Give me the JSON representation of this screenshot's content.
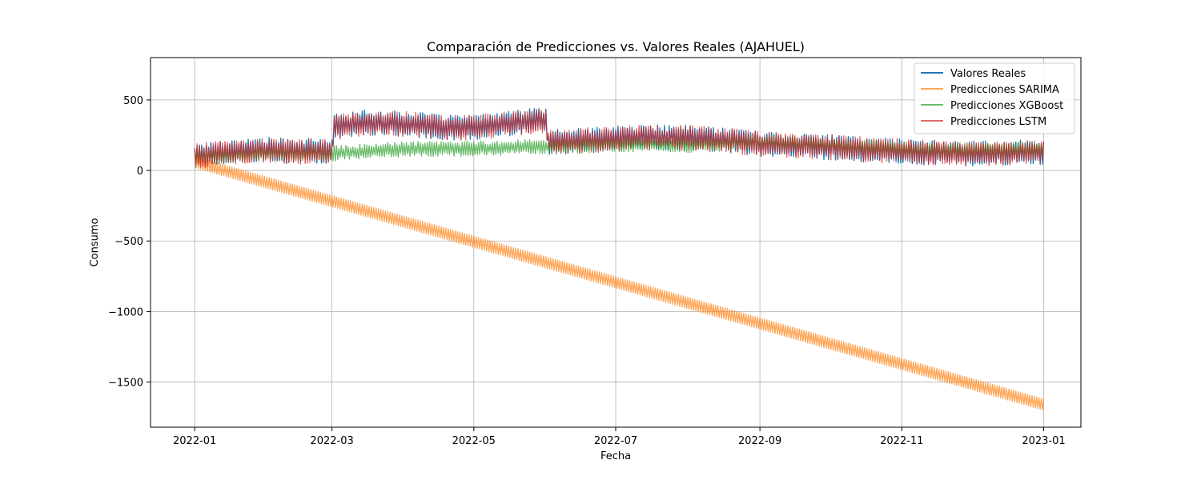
{
  "chart_data": {
    "type": "line",
    "title": "Comparación de Predicciones vs. Valores Reales (AJAHUEL)",
    "xlabel": "Fecha",
    "ylabel": "Consumo",
    "xlim": [
      "2021-12-13",
      "2023-01-17"
    ],
    "ylim": [
      -1820,
      800
    ],
    "x_ticks": [
      "2022-01",
      "2022-03",
      "2022-05",
      "2022-07",
      "2022-09",
      "2022-11",
      "2023-01"
    ],
    "y_ticks": [
      500,
      0,
      -500,
      -1000,
      -1500
    ],
    "y_tick_labels": [
      "500",
      "0",
      "−500",
      "−1000",
      "−1500"
    ],
    "grid": true,
    "legend_position": "top-right",
    "series": [
      {
        "name": "Valores Reales",
        "color": "#1f77b4",
        "points": [
          [
            "2022-01-01",
            100
          ],
          [
            "2022-01-15",
            130
          ],
          [
            "2022-02-01",
            145
          ],
          [
            "2022-02-15",
            135
          ],
          [
            "2022-03-01",
            140
          ],
          [
            "2022-03-02",
            310
          ],
          [
            "2022-03-15",
            340
          ],
          [
            "2022-04-01",
            330
          ],
          [
            "2022-04-15",
            310
          ],
          [
            "2022-05-01",
            300
          ],
          [
            "2022-05-15",
            330
          ],
          [
            "2022-06-01",
            360
          ],
          [
            "2022-06-02",
            200
          ],
          [
            "2022-06-15",
            210
          ],
          [
            "2022-07-01",
            225
          ],
          [
            "2022-07-15",
            235
          ],
          [
            "2022-08-01",
            230
          ],
          [
            "2022-08-15",
            220
          ],
          [
            "2022-09-01",
            190
          ],
          [
            "2022-09-15",
            180
          ],
          [
            "2022-10-01",
            165
          ],
          [
            "2022-10-15",
            150
          ],
          [
            "2022-11-01",
            135
          ],
          [
            "2022-11-15",
            125
          ],
          [
            "2022-12-01",
            120
          ],
          [
            "2022-12-15",
            125
          ],
          [
            "2023-01-01",
            130
          ]
        ]
      },
      {
        "name": "Predicciones SARIMA",
        "color": "#ff7f0e",
        "points": [
          [
            "2022-01-01",
            60
          ],
          [
            "2023-01-01",
            -1660
          ]
        ]
      },
      {
        "name": "Predicciones XGBoost",
        "color": "#2ca02c",
        "points": [
          [
            "2022-01-01",
            100
          ],
          [
            "2022-02-01",
            120
          ],
          [
            "2022-03-01",
            120
          ],
          [
            "2022-04-01",
            150
          ],
          [
            "2022-05-01",
            155
          ],
          [
            "2022-06-01",
            170
          ],
          [
            "2022-07-01",
            185
          ],
          [
            "2022-08-01",
            180
          ],
          [
            "2022-09-01",
            200
          ],
          [
            "2022-10-01",
            180
          ],
          [
            "2022-11-01",
            150
          ],
          [
            "2022-12-01",
            140
          ],
          [
            "2023-01-01",
            150
          ]
        ]
      },
      {
        "name": "Predicciones LSTM",
        "color": "#d62728",
        "points": [
          [
            "2022-01-01",
            100
          ],
          [
            "2022-01-15",
            130
          ],
          [
            "2022-02-01",
            145
          ],
          [
            "2022-02-15",
            135
          ],
          [
            "2022-03-01",
            140
          ],
          [
            "2022-03-02",
            305
          ],
          [
            "2022-03-15",
            335
          ],
          [
            "2022-04-01",
            330
          ],
          [
            "2022-04-15",
            310
          ],
          [
            "2022-05-01",
            300
          ],
          [
            "2022-05-15",
            330
          ],
          [
            "2022-06-01",
            355
          ],
          [
            "2022-06-02",
            200
          ],
          [
            "2022-06-15",
            210
          ],
          [
            "2022-07-01",
            225
          ],
          [
            "2022-07-15",
            235
          ],
          [
            "2022-08-01",
            230
          ],
          [
            "2022-08-15",
            220
          ],
          [
            "2022-09-01",
            190
          ],
          [
            "2022-09-15",
            180
          ],
          [
            "2022-10-01",
            165
          ],
          [
            "2022-10-15",
            150
          ],
          [
            "2022-11-01",
            135
          ],
          [
            "2022-11-15",
            125
          ],
          [
            "2022-12-01",
            120
          ],
          [
            "2022-12-15",
            125
          ],
          [
            "2023-01-01",
            130
          ]
        ]
      }
    ]
  }
}
